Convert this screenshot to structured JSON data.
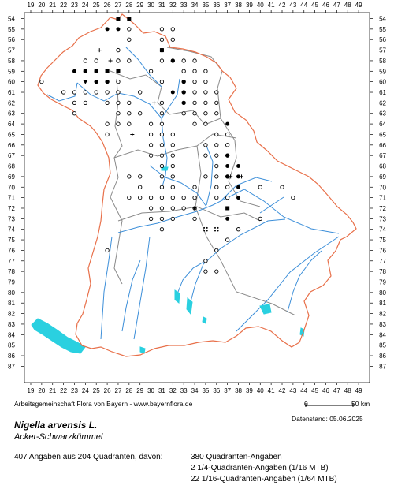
{
  "grid": {
    "col_labels": [
      "19",
      "20",
      "21",
      "22",
      "23",
      "24",
      "25",
      "26",
      "27",
      "28",
      "29",
      "30",
      "31",
      "32",
      "33",
      "34",
      "35",
      "36",
      "37",
      "38",
      "39",
      "40",
      "41",
      "42",
      "43",
      "44",
      "45",
      "46",
      "47",
      "48",
      "49"
    ],
    "row_labels": [
      "54",
      "55",
      "56",
      "57",
      "58",
      "59",
      "60",
      "61",
      "62",
      "63",
      "64",
      "65",
      "66",
      "67",
      "68",
      "69",
      "70",
      "71",
      "72",
      "73",
      "74",
      "75",
      "76",
      "77",
      "78",
      "79",
      "80",
      "81",
      "82",
      "83",
      "84",
      "85",
      "86",
      "87"
    ]
  },
  "colors": {
    "border": "#e8704a",
    "districts": "#8a8a8a",
    "rivers": "#3d8fd9",
    "lakes": "#2ad0e0",
    "records": "#000000"
  },
  "symbols": {
    "circle": [
      [
        20,
        60
      ],
      [
        24,
        59
      ],
      [
        25,
        58
      ],
      [
        25,
        59
      ],
      [
        25,
        60
      ],
      [
        25,
        61
      ],
      [
        26,
        60
      ],
      [
        26,
        61
      ],
      [
        26,
        62
      ],
      [
        24,
        61
      ],
      [
        24,
        62
      ],
      [
        23,
        61
      ],
      [
        23,
        62
      ],
      [
        22,
        61
      ],
      [
        23,
        63
      ],
      [
        27,
        57
      ],
      [
        27,
        58
      ],
      [
        27,
        60
      ],
      [
        27,
        61
      ],
      [
        27,
        62
      ],
      [
        27,
        63
      ],
      [
        28,
        55
      ],
      [
        28,
        56
      ],
      [
        28,
        58
      ],
      [
        28,
        62
      ],
      [
        28,
        63
      ],
      [
        29,
        63
      ],
      [
        29,
        61
      ],
      [
        30,
        59
      ],
      [
        31,
        55
      ],
      [
        31,
        56
      ],
      [
        31,
        57
      ],
      [
        31,
        58
      ],
      [
        32,
        55
      ],
      [
        32,
        56
      ],
      [
        32,
        58
      ],
      [
        31,
        60
      ],
      [
        31,
        62
      ],
      [
        31,
        63
      ],
      [
        30,
        64
      ],
      [
        31,
        64
      ],
      [
        30,
        65
      ],
      [
        31,
        65
      ],
      [
        32,
        65
      ],
      [
        30,
        66
      ],
      [
        31,
        66
      ],
      [
        32,
        66
      ],
      [
        30,
        67
      ],
      [
        31,
        67
      ],
      [
        32,
        67
      ],
      [
        31,
        68
      ],
      [
        32,
        68
      ],
      [
        31,
        69
      ],
      [
        32,
        69
      ],
      [
        31,
        70
      ],
      [
        32,
        70
      ],
      [
        31,
        71
      ],
      [
        32,
        71
      ],
      [
        30,
        71
      ],
      [
        30,
        72
      ],
      [
        29,
        69
      ],
      [
        29,
        70
      ],
      [
        28,
        69
      ],
      [
        29,
        71
      ],
      [
        28,
        71
      ],
      [
        33,
        58
      ],
      [
        34,
        58
      ],
      [
        33,
        59
      ],
      [
        34,
        59
      ],
      [
        35,
        59
      ],
      [
        33,
        60
      ],
      [
        34,
        60
      ],
      [
        35,
        60
      ],
      [
        33,
        61
      ],
      [
        34,
        61
      ],
      [
        35,
        61
      ],
      [
        36,
        61
      ],
      [
        33,
        62
      ],
      [
        34,
        62
      ],
      [
        35,
        62
      ],
      [
        36,
        62
      ],
      [
        34,
        63
      ],
      [
        35,
        63
      ],
      [
        36,
        63
      ],
      [
        34,
        64
      ],
      [
        35,
        64
      ],
      [
        33,
        63
      ],
      [
        36,
        65
      ],
      [
        37,
        65
      ],
      [
        36,
        66
      ],
      [
        37,
        66
      ],
      [
        36,
        67
      ],
      [
        37,
        67
      ],
      [
        36,
        68
      ],
      [
        35,
        66
      ],
      [
        35,
        67
      ],
      [
        34,
        70
      ],
      [
        34,
        71
      ],
      [
        33,
        71
      ],
      [
        35,
        69
      ],
      [
        36,
        69
      ],
      [
        37,
        69
      ],
      [
        36,
        70
      ],
      [
        37,
        70
      ],
      [
        36,
        71
      ],
      [
        37,
        71
      ],
      [
        40,
        70
      ],
      [
        42,
        70
      ],
      [
        43,
        71
      ],
      [
        40,
        73
      ],
      [
        38,
        74
      ],
      [
        37,
        75
      ],
      [
        36,
        76
      ],
      [
        35,
        77
      ],
      [
        35,
        78
      ],
      [
        36,
        78
      ],
      [
        34,
        73
      ],
      [
        31,
        73
      ],
      [
        32,
        73
      ],
      [
        31,
        74
      ],
      [
        33,
        72
      ],
      [
        34,
        72
      ],
      [
        30,
        73
      ],
      [
        26,
        76
      ],
      [
        31,
        72
      ],
      [
        32,
        72
      ],
      [
        26,
        64
      ],
      [
        26,
        65
      ],
      [
        27,
        64
      ],
      [
        28,
        64
      ],
      [
        24,
        58
      ]
    ],
    "filled": [
      [
        26,
        55
      ],
      [
        27,
        54
      ],
      [
        27,
        55
      ],
      [
        23,
        59
      ],
      [
        24,
        59
      ],
      [
        25,
        60
      ],
      [
        32,
        58
      ],
      [
        32,
        61
      ],
      [
        33,
        61
      ],
      [
        33,
        62
      ],
      [
        37,
        67
      ],
      [
        37,
        68
      ],
      [
        37,
        69
      ],
      [
        38,
        68
      ],
      [
        38,
        69
      ],
      [
        38,
        70
      ],
      [
        38,
        71
      ],
      [
        37,
        73
      ],
      [
        26,
        60
      ],
      [
        33,
        60
      ],
      [
        37,
        64
      ]
    ],
    "square": [
      [
        27,
        54
      ],
      [
        28,
        54
      ],
      [
        24,
        59
      ],
      [
        25,
        59
      ],
      [
        26,
        59
      ],
      [
        27,
        59
      ],
      [
        31,
        57
      ],
      [
        37,
        72
      ]
    ],
    "triangle": [
      [
        24,
        60
      ],
      [
        34,
        72
      ]
    ],
    "plus": [
      [
        25,
        57
      ],
      [
        26,
        58
      ],
      [
        28,
        65
      ],
      [
        30,
        62
      ],
      [
        37,
        69
      ],
      [
        38,
        69
      ]
    ],
    "dots4": [
      [
        35,
        74
      ],
      [
        36,
        74
      ]
    ]
  },
  "credit": "Arbeitsgemeinschaft Flora von Bayern - www.bayernflora.de",
  "scale": {
    "zero": "0",
    "end": "50 km"
  },
  "datum": "Datenstand: 05.06.2025",
  "species": {
    "latin": "Nigella arvensis L.",
    "german": "Acker-Schwarzkümmel"
  },
  "stats": {
    "total": "407 Angaben aus 204 Quadranten, davon:",
    "q1": "380 Quadranten-Angaben",
    "q2": "2 1/4-Quadranten-Angaben (1/16 MTB)",
    "q3": "22 1/16-Quadranten-Angaben (1/64 MTB)"
  }
}
